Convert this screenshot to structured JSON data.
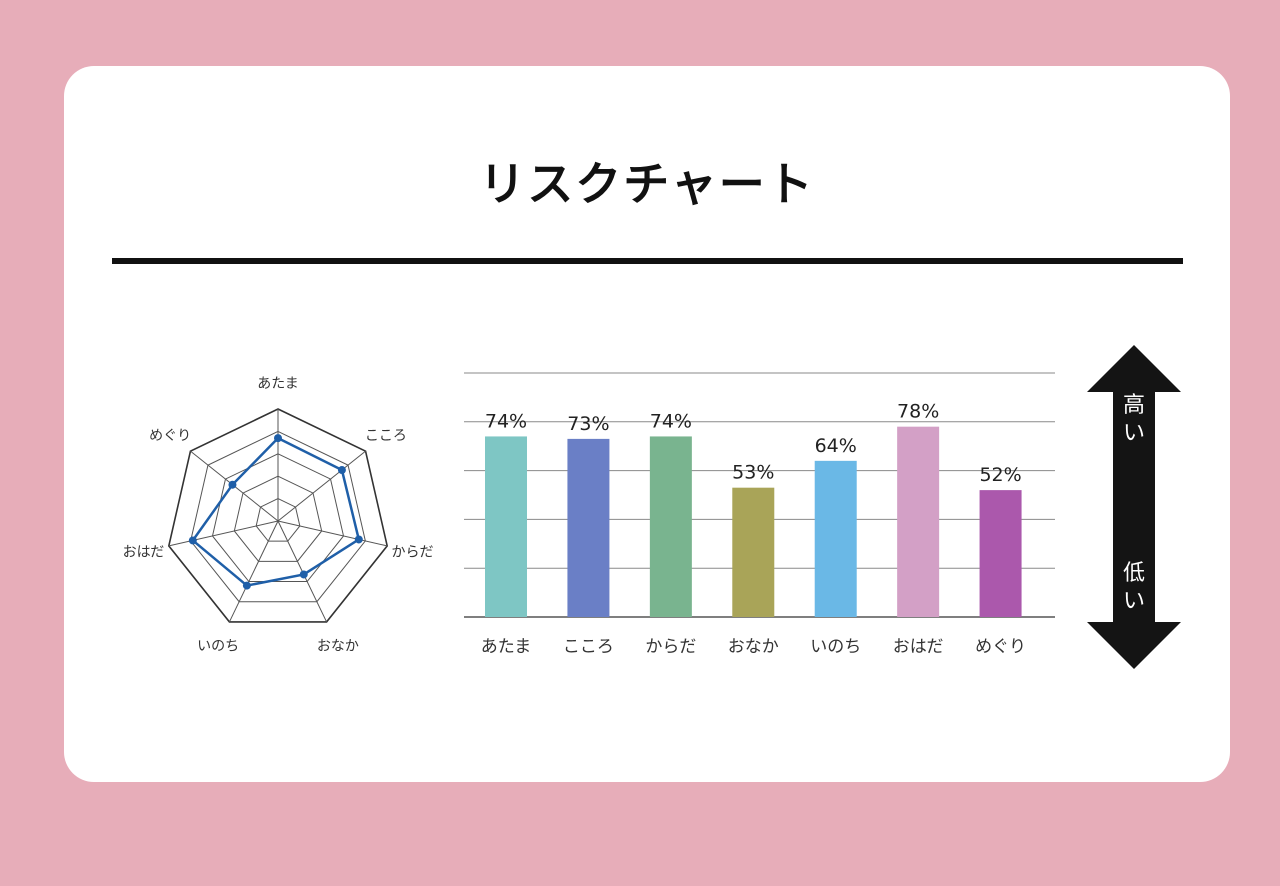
{
  "page": {
    "title": "リスクチャート"
  },
  "arrow": {
    "high_label": "高い",
    "low_label": "低い"
  },
  "chart_data": [
    {
      "type": "radar",
      "categories": [
        "あたま",
        "こころ",
        "からだ",
        "おなか",
        "いのち",
        "おはだ",
        "めぐり"
      ],
      "values": [
        74,
        73,
        74,
        53,
        64,
        78,
        52
      ],
      "rlim": [
        0,
        100
      ],
      "grid": true,
      "color": "#1f5fa8"
    },
    {
      "type": "bar",
      "categories": [
        "あたま",
        "こころ",
        "からだ",
        "おなか",
        "いのち",
        "おはだ",
        "めぐり"
      ],
      "values": [
        74,
        73,
        74,
        53,
        64,
        78,
        52
      ],
      "value_labels": [
        "74%",
        "73%",
        "74%",
        "53%",
        "64%",
        "78%",
        "52%"
      ],
      "colors": [
        "#7ec6c4",
        "#6a7fc6",
        "#79b48f",
        "#a9a458",
        "#6ab8e6",
        "#d3a0c6",
        "#ab58ac"
      ],
      "ylim": [
        0,
        100
      ],
      "grid": true
    }
  ]
}
